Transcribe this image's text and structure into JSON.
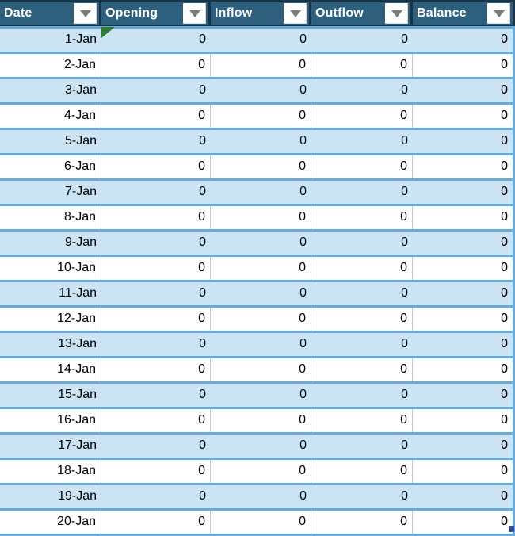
{
  "table": {
    "columns": [
      {
        "key": "date",
        "label": "Date"
      },
      {
        "key": "opening",
        "label": "Opening"
      },
      {
        "key": "inflow",
        "label": "Inflow"
      },
      {
        "key": "outflow",
        "label": "Outflow"
      },
      {
        "key": "balance",
        "label": "Balance"
      }
    ],
    "rows": [
      [
        "1-Jan",
        "0",
        "0",
        "0",
        "0"
      ],
      [
        "2-Jan",
        "0",
        "0",
        "0",
        "0"
      ],
      [
        "3-Jan",
        "0",
        "0",
        "0",
        "0"
      ],
      [
        "4-Jan",
        "0",
        "0",
        "0",
        "0"
      ],
      [
        "5-Jan",
        "0",
        "0",
        "0",
        "0"
      ],
      [
        "6-Jan",
        "0",
        "0",
        "0",
        "0"
      ],
      [
        "7-Jan",
        "0",
        "0",
        "0",
        "0"
      ],
      [
        "8-Jan",
        "0",
        "0",
        "0",
        "0"
      ],
      [
        "9-Jan",
        "0",
        "0",
        "0",
        "0"
      ],
      [
        "10-Jan",
        "0",
        "0",
        "0",
        "0"
      ],
      [
        "11-Jan",
        "0",
        "0",
        "0",
        "0"
      ],
      [
        "12-Jan",
        "0",
        "0",
        "0",
        "0"
      ],
      [
        "13-Jan",
        "0",
        "0",
        "0",
        "0"
      ],
      [
        "14-Jan",
        "0",
        "0",
        "0",
        "0"
      ],
      [
        "15-Jan",
        "0",
        "0",
        "0",
        "0"
      ],
      [
        "16-Jan",
        "0",
        "0",
        "0",
        "0"
      ],
      [
        "17-Jan",
        "0",
        "0",
        "0",
        "0"
      ],
      [
        "18-Jan",
        "0",
        "0",
        "0",
        "0"
      ],
      [
        "19-Jan",
        "0",
        "0",
        "0",
        "0"
      ],
      [
        "20-Jan",
        "0",
        "0",
        "0",
        "0"
      ]
    ],
    "indicators": {
      "error_flag_cell": {
        "row": 0,
        "col": 1
      },
      "resize_handle_cell": {
        "row": 19,
        "col": 4
      }
    }
  },
  "icons": {
    "filter_dropdown": "triangle-down"
  },
  "colors": {
    "header_bg": "#2E5F7D",
    "header_text": "#FFFFFF",
    "header_divider": "#1B3445",
    "band_fill": "#CBE4F4",
    "row_separator": "#67ABDC",
    "gridline": "#C9C9C9",
    "filter_triangle": "#7B7B7B",
    "error_indicator": "#2F7D33",
    "resize_handle": "#3A4A9F",
    "cell_text": "#000000"
  }
}
